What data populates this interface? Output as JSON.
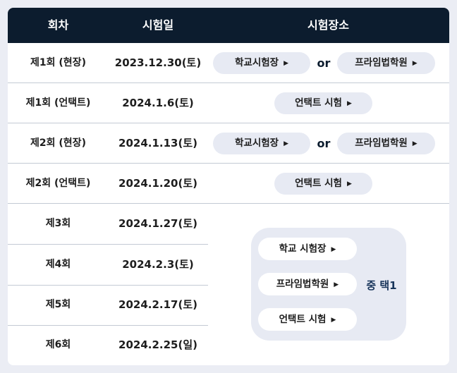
{
  "header": {
    "round": "회차",
    "date": "시험일",
    "place": "시험장소"
  },
  "rows": [
    {
      "round": "제1회 (현장)",
      "date": "2023.12.30(토)"
    },
    {
      "round": "제1회 (언택트)",
      "date": "2024.1.6(토)"
    },
    {
      "round": "제2회 (현장)",
      "date": "2024.1.13(토)"
    },
    {
      "round": "제2회 (언택트)",
      "date": "2024.1.20(토)"
    },
    {
      "round": "제3회",
      "date": "2024.1.27(토)"
    },
    {
      "round": "제4회",
      "date": "2024.2.3(토)"
    },
    {
      "round": "제5회",
      "date": "2024.2.17(토)"
    },
    {
      "round": "제6회",
      "date": "2024.2.25(일)"
    }
  ],
  "places": {
    "school": "학교시험장",
    "academy": "프라임법학원",
    "or": "or",
    "untact": "언택트 시험",
    "arrow": "▶"
  },
  "group": {
    "school": "학교 시험장",
    "academy": "프라임법학원",
    "untact": "언택트 시험",
    "choose": "중 택1"
  }
}
